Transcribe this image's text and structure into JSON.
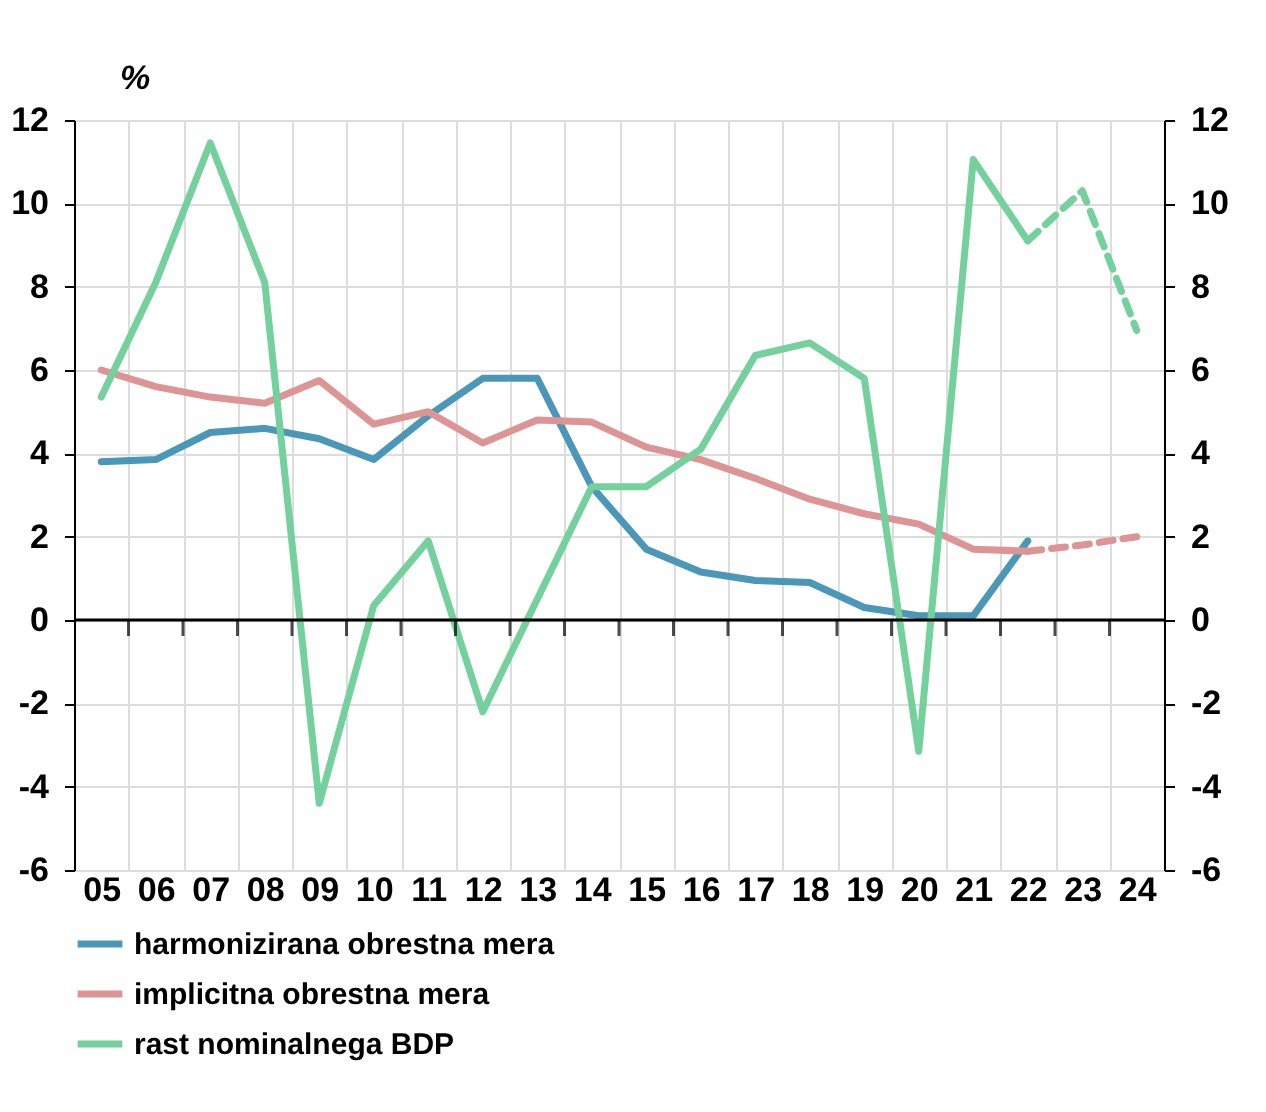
{
  "chart_data": {
    "type": "line",
    "ylabel": "%",
    "categories": [
      "05",
      "06",
      "07",
      "08",
      "09",
      "10",
      "11",
      "12",
      "13",
      "14",
      "15",
      "16",
      "17",
      "18",
      "19",
      "20",
      "21",
      "22",
      "23",
      "24"
    ],
    "series": [
      {
        "name": "harmonizirana obrestna mera",
        "color": "#4a97b8",
        "values": [
          3.8,
          3.85,
          4.5,
          4.6,
          4.35,
          3.85,
          4.9,
          5.8,
          5.8,
          3.2,
          1.7,
          1.15,
          0.95,
          0.9,
          0.3,
          0.1,
          0.1,
          1.9,
          null,
          null
        ]
      },
      {
        "name": "implicitna obrestna mera",
        "color": "#dc9594",
        "values": [
          6.0,
          5.6,
          5.35,
          5.2,
          5.75,
          4.7,
          5.0,
          4.25,
          4.8,
          4.75,
          4.15,
          3.85,
          3.4,
          2.9,
          2.55,
          2.3,
          1.7,
          1.65,
          null,
          null
        ]
      },
      {
        "name": "rast nominalnega BDP",
        "color": "#74d09c",
        "values": [
          5.35,
          8.1,
          11.45,
          8.1,
          -4.4,
          0.35,
          1.9,
          -2.2,
          0.5,
          3.2,
          3.2,
          4.1,
          6.35,
          6.65,
          5.8,
          -3.15,
          11.05,
          9.1,
          null,
          null
        ]
      },
      {
        "color": "#dc9594",
        "line_style": "dashed",
        "values": [
          null,
          null,
          null,
          null,
          null,
          null,
          null,
          null,
          null,
          null,
          null,
          null,
          null,
          null,
          null,
          null,
          null,
          1.65,
          1.8,
          2.0
        ]
      },
      {
        "color": "#74d09c",
        "line_style": "dashed",
        "values": [
          null,
          null,
          null,
          null,
          null,
          null,
          null,
          null,
          null,
          null,
          null,
          null,
          null,
          null,
          null,
          null,
          null,
          9.1,
          10.3,
          6.95
        ]
      }
    ],
    "ylim": [
      -6,
      12
    ],
    "yticks": [
      -6,
      -4,
      -2,
      0,
      2,
      4,
      6,
      8,
      10,
      12
    ],
    "y2lim": [
      -6,
      12
    ],
    "y2ticks": [
      -6,
      -4,
      -2,
      0,
      2,
      4,
      6,
      8,
      10,
      12
    ],
    "ref_lines": [
      {
        "axis": "y",
        "value": 0,
        "color": "#000000"
      }
    ],
    "grid": true,
    "legend": "bottom",
    "line_style": "solid"
  }
}
